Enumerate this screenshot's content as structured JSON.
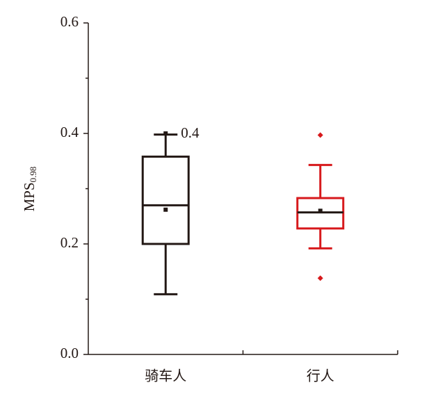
{
  "chart_data": {
    "type": "box",
    "ylabel": "MPS",
    "ylabel_sub": "0.98",
    "categories": [
      "骑车人",
      "行人"
    ],
    "boxes": [
      {
        "color": "#231815",
        "whisker_low": 0.109,
        "q1": 0.2,
        "median": 0.27,
        "q3": 0.358,
        "whisker_high": 0.398,
        "mean": 0.262,
        "outliers": [
          0.4
        ]
      },
      {
        "color": "#d7191c",
        "whisker_low": 0.192,
        "q1": 0.228,
        "median": 0.257,
        "q3": 0.283,
        "whisker_high": 0.343,
        "mean": 0.26,
        "outliers": [
          0.397,
          0.138
        ]
      }
    ],
    "ylim": [
      0,
      0.6
    ],
    "yticks": [
      {
        "value": 0,
        "label": "0.0"
      },
      0.2,
      0.4,
      0.6
    ],
    "minor_yticks": [
      0.1,
      0.3,
      0.5
    ]
  }
}
